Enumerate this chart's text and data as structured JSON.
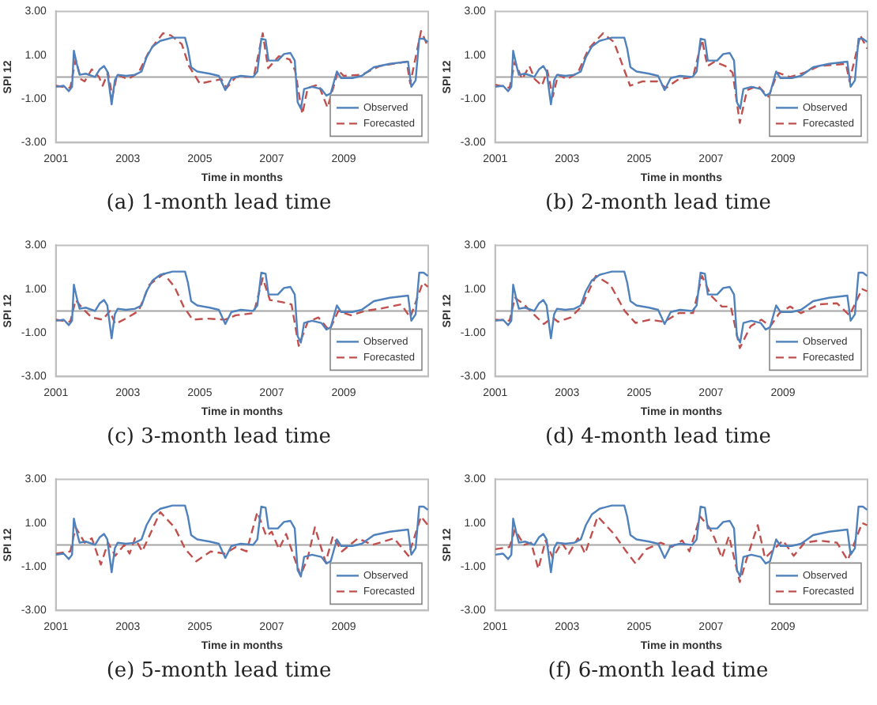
{
  "chart_data": [
    {
      "type": "line",
      "title": "(a) 1-month lead time",
      "xlabel": "Time in months",
      "ylabel": "SPI 12",
      "xlim": [
        2001,
        2011.35
      ],
      "xticks": [
        2001,
        2003,
        2005,
        2007,
        2009
      ],
      "ylim": [
        -3,
        3
      ],
      "yticks": [
        {
          "value": -3,
          "label": "-3.00"
        },
        {
          "value": -1,
          "label": "-1.00"
        },
        {
          "value": 1,
          "label": "1.00"
        },
        {
          "value": 3,
          "label": "3.00"
        }
      ],
      "grid": false,
      "legend": "bottom right",
      "marker": "none",
      "ref_lines": [
        {
          "axis": "y",
          "value": 0,
          "color": "#a6a6a6"
        }
      ],
      "series": [
        {
          "name": "Observed",
          "color": "#4f81bd",
          "line_style": "solid",
          "x": [
            2001.0,
            2001.22,
            2001.36,
            2001.45,
            2001.5,
            2001.6,
            2001.66,
            2001.83,
            2002.09,
            2002.22,
            2002.34,
            2002.43,
            2002.55,
            2002.64,
            2002.72,
            2002.95,
            2003.2,
            2003.38,
            2003.52,
            2003.69,
            2003.9,
            2004.24,
            2004.45,
            2004.59,
            2004.67,
            2004.76,
            2004.93,
            2005.28,
            2005.53,
            2005.71,
            2005.88,
            2006.14,
            2006.48,
            2006.6,
            2006.71,
            2006.83,
            2006.91,
            2007.17,
            2007.34,
            2007.52,
            2007.64,
            2007.72,
            2007.81,
            2007.9,
            2008.12,
            2008.38,
            2008.52,
            2008.64,
            2008.81,
            2008.93,
            2009.24,
            2009.5,
            2009.84,
            2010.28,
            2010.79,
            2010.88,
            2011.0,
            2011.1,
            2011.22,
            2011.34
          ],
          "values": [
            -0.45,
            -0.4,
            -0.65,
            -0.45,
            1.2,
            0.47,
            0.1,
            0.15,
            0.0,
            0.35,
            0.5,
            0.25,
            -1.25,
            -0.15,
            0.1,
            0.05,
            0.1,
            0.25,
            0.9,
            1.4,
            1.65,
            1.8,
            1.8,
            1.8,
            1.3,
            0.45,
            0.25,
            0.15,
            0.05,
            -0.6,
            -0.05,
            0.05,
            0,
            0.25,
            1.75,
            1.7,
            0.75,
            0.75,
            1.05,
            1.1,
            0.75,
            -1.15,
            -1.45,
            -0.55,
            -0.45,
            -0.55,
            -0.85,
            -0.75,
            0.25,
            -0.05,
            -0.05,
            0.05,
            0.45,
            0.6,
            0.7,
            -0.45,
            -0.15,
            1.75,
            1.75,
            1.6
          ]
        },
        {
          "name": "Forecasted",
          "color": "#c0504d",
          "line_style": "dashed",
          "x": [
            2001.0,
            2001.4,
            2001.55,
            2001.7,
            2001.8,
            2002.0,
            2002.2,
            2002.3,
            2002.45,
            2002.57,
            2002.7,
            2003.0,
            2003.3,
            2003.6,
            2003.98,
            2004.2,
            2004.5,
            2004.7,
            2005.0,
            2005.3,
            2005.6,
            2005.75,
            2006.0,
            2006.5,
            2006.75,
            2006.9,
            2007.2,
            2007.5,
            2007.65,
            2007.85,
            2008.0,
            2008.3,
            2008.55,
            2008.85,
            2009.0,
            2009.5,
            2010.0,
            2010.75,
            2010.85,
            2011.15,
            2011.34
          ],
          "values": [
            -0.4,
            -0.5,
            0.8,
            -0.1,
            -0.2,
            0.35,
            0.0,
            -0.4,
            0.2,
            -0.9,
            0.1,
            -0.1,
            0.2,
            1.2,
            2.0,
            1.9,
            1.5,
            0.5,
            -0.3,
            -0.2,
            -0.1,
            -0.5,
            0.0,
            0.0,
            2.0,
            0.4,
            0.95,
            0.8,
            0.3,
            -1.7,
            -0.5,
            -0.35,
            -1.4,
            0.3,
            0.05,
            0.1,
            0.5,
            0.7,
            -0.3,
            2.1,
            1.4
          ]
        }
      ]
    },
    {
      "type": "line",
      "title": "(b) 2-month lead time",
      "xlabel": "Time in months",
      "ylabel": "SPI 12",
      "xlim": [
        2001,
        2011.35
      ],
      "xticks": [
        2001,
        2003,
        2005,
        2007,
        2009
      ],
      "ylim": [
        -3,
        3
      ],
      "yticks": [
        {
          "value": -3,
          "label": "-3.00"
        },
        {
          "value": -1,
          "label": "-1.00"
        },
        {
          "value": 1,
          "label": "1.00"
        },
        {
          "value": 3,
          "label": "3.00"
        }
      ],
      "grid": false,
      "legend": "bottom right",
      "marker": "none",
      "ref_lines": [
        {
          "axis": "y",
          "value": 0,
          "color": "#a6a6a6"
        }
      ],
      "series": [
        {
          "name": "Observed",
          "color": "#4f81bd",
          "line_style": "solid",
          "x": [
            2001.0,
            2001.22,
            2001.36,
            2001.45,
            2001.5,
            2001.6,
            2001.66,
            2001.83,
            2002.09,
            2002.22,
            2002.34,
            2002.43,
            2002.55,
            2002.64,
            2002.72,
            2002.95,
            2003.2,
            2003.38,
            2003.52,
            2003.69,
            2003.9,
            2004.24,
            2004.45,
            2004.59,
            2004.67,
            2004.76,
            2004.93,
            2005.28,
            2005.53,
            2005.71,
            2005.88,
            2006.14,
            2006.48,
            2006.6,
            2006.71,
            2006.83,
            2006.91,
            2007.17,
            2007.34,
            2007.52,
            2007.64,
            2007.72,
            2007.81,
            2007.9,
            2008.12,
            2008.38,
            2008.52,
            2008.64,
            2008.81,
            2008.93,
            2009.24,
            2009.5,
            2009.84,
            2010.28,
            2010.79,
            2010.88,
            2011.0,
            2011.1,
            2011.22,
            2011.34
          ],
          "values": [
            -0.45,
            -0.4,
            -0.65,
            -0.45,
            1.2,
            0.47,
            0.1,
            0.15,
            0.0,
            0.35,
            0.5,
            0.25,
            -1.25,
            -0.15,
            0.1,
            0.05,
            0.1,
            0.25,
            0.9,
            1.4,
            1.65,
            1.8,
            1.8,
            1.8,
            1.3,
            0.45,
            0.25,
            0.15,
            0.05,
            -0.6,
            -0.05,
            0.05,
            0,
            0.25,
            1.75,
            1.7,
            0.75,
            0.75,
            1.05,
            1.1,
            0.75,
            -1.15,
            -1.45,
            -0.55,
            -0.45,
            -0.55,
            -0.85,
            -0.75,
            0.25,
            -0.05,
            -0.05,
            0.05,
            0.45,
            0.6,
            0.7,
            -0.45,
            -0.15,
            1.75,
            1.75,
            1.6
          ]
        },
        {
          "name": "Forecasted",
          "color": "#c0504d",
          "line_style": "dashed",
          "x": [
            2001.0,
            2001.4,
            2001.55,
            2001.75,
            2001.95,
            2002.1,
            2002.3,
            2002.45,
            2002.6,
            2002.75,
            2003.0,
            2003.3,
            2003.6,
            2004.0,
            2004.3,
            2004.55,
            2004.75,
            2005.1,
            2005.5,
            2005.75,
            2006.1,
            2006.5,
            2006.75,
            2006.9,
            2007.1,
            2007.4,
            2007.6,
            2007.8,
            2008.0,
            2008.3,
            2008.6,
            2008.85,
            2009.2,
            2009.6,
            2010.0,
            2010.75,
            2010.85,
            2011.15,
            2011.34
          ],
          "values": [
            -0.35,
            -0.5,
            0.7,
            -0.1,
            0.5,
            -0.1,
            -0.4,
            0.3,
            -0.9,
            0.1,
            -0.1,
            0.2,
            1.3,
            2.0,
            1.6,
            0.5,
            -0.4,
            -0.2,
            -0.2,
            -0.5,
            -0.1,
            0.0,
            1.7,
            0.5,
            0.7,
            0.5,
            0.2,
            -2.1,
            -0.6,
            -0.4,
            -0.9,
            0.2,
            0.0,
            0.2,
            0.5,
            0.6,
            -0.2,
            1.9,
            1.3
          ]
        }
      ]
    },
    {
      "type": "line",
      "title": "(c) 3-month lead time",
      "xlabel": "Time in months",
      "ylabel": "SPI 12",
      "xlim": [
        2001,
        2011.35
      ],
      "xticks": [
        2001,
        2003,
        2005,
        2007,
        2009
      ],
      "ylim": [
        -3,
        3
      ],
      "yticks": [
        {
          "value": -3,
          "label": "-3.00"
        },
        {
          "value": -1,
          "label": "-1.00"
        },
        {
          "value": 1,
          "label": "1.00"
        },
        {
          "value": 3,
          "label": "3.00"
        }
      ],
      "grid": false,
      "legend": "bottom right",
      "marker": "none",
      "ref_lines": [
        {
          "axis": "y",
          "value": 0,
          "color": "#a6a6a6"
        }
      ],
      "series": [
        {
          "name": "Observed",
          "color": "#4f81bd",
          "line_style": "solid",
          "x": [
            2001.0,
            2001.22,
            2001.36,
            2001.45,
            2001.5,
            2001.6,
            2001.66,
            2001.83,
            2002.09,
            2002.22,
            2002.34,
            2002.43,
            2002.55,
            2002.64,
            2002.72,
            2002.95,
            2003.2,
            2003.38,
            2003.52,
            2003.69,
            2003.9,
            2004.24,
            2004.45,
            2004.59,
            2004.67,
            2004.76,
            2004.93,
            2005.28,
            2005.53,
            2005.71,
            2005.88,
            2006.14,
            2006.48,
            2006.6,
            2006.71,
            2006.83,
            2006.91,
            2007.17,
            2007.34,
            2007.52,
            2007.64,
            2007.72,
            2007.81,
            2007.9,
            2008.12,
            2008.38,
            2008.52,
            2008.64,
            2008.81,
            2008.93,
            2009.24,
            2009.5,
            2009.84,
            2010.28,
            2010.79,
            2010.88,
            2011.0,
            2011.1,
            2011.22,
            2011.34
          ],
          "values": [
            -0.45,
            -0.4,
            -0.65,
            -0.45,
            1.2,
            0.47,
            0.1,
            0.15,
            0.0,
            0.35,
            0.5,
            0.25,
            -1.25,
            -0.15,
            0.1,
            0.05,
            0.1,
            0.25,
            0.9,
            1.4,
            1.65,
            1.8,
            1.8,
            1.8,
            1.3,
            0.45,
            0.25,
            0.15,
            0.05,
            -0.6,
            -0.05,
            0.05,
            0,
            0.25,
            1.75,
            1.7,
            0.75,
            0.75,
            1.05,
            1.1,
            0.75,
            -1.15,
            -1.45,
            -0.55,
            -0.45,
            -0.55,
            -0.85,
            -0.75,
            0.25,
            -0.05,
            -0.05,
            0.05,
            0.45,
            0.6,
            0.7,
            -0.45,
            -0.15,
            1.75,
            1.75,
            1.6
          ]
        },
        {
          "name": "Forecasted",
          "color": "#c0504d",
          "line_style": "dashed",
          "x": [
            2001.0,
            2001.4,
            2001.55,
            2001.75,
            2002.0,
            2002.3,
            2002.5,
            2002.65,
            2003.0,
            2003.3,
            2003.6,
            2004.0,
            2004.3,
            2004.55,
            2004.8,
            2005.2,
            2005.7,
            2006.0,
            2006.5,
            2006.75,
            2006.95,
            2007.3,
            2007.55,
            2007.75,
            2008.0,
            2008.3,
            2008.6,
            2008.85,
            2009.2,
            2009.6,
            2010.0,
            2010.6,
            2010.85,
            2011.2,
            2011.34
          ],
          "values": [
            -0.4,
            -0.5,
            0.5,
            0.1,
            -0.3,
            -0.4,
            0.0,
            -0.6,
            -0.3,
            0.0,
            1.2,
            1.7,
            1.1,
            0.2,
            -0.4,
            -0.35,
            -0.4,
            -0.2,
            -0.1,
            1.5,
            0.5,
            0.4,
            0.3,
            -1.6,
            -0.5,
            -0.3,
            -0.9,
            0.0,
            -0.2,
            0.0,
            0.1,
            0.3,
            -0.3,
            1.3,
            1.1
          ]
        }
      ]
    },
    {
      "type": "line",
      "title": "(d) 4-month lead time",
      "xlabel": "Time in months",
      "ylabel": "SPI 12",
      "xlim": [
        2001,
        2011.35
      ],
      "xticks": [
        2001,
        2003,
        2005,
        2007,
        2009
      ],
      "ylim": [
        -3,
        3
      ],
      "yticks": [
        {
          "value": -3,
          "label": "-3.00"
        },
        {
          "value": -1,
          "label": "-1.00"
        },
        {
          "value": 1,
          "label": "1.00"
        },
        {
          "value": 3,
          "label": "3.00"
        }
      ],
      "grid": false,
      "legend": "bottom right",
      "marker": "none",
      "ref_lines": [
        {
          "axis": "y",
          "value": 0,
          "color": "#a6a6a6"
        }
      ],
      "series": [
        {
          "name": "Observed",
          "color": "#4f81bd",
          "line_style": "solid",
          "x": [
            2001.0,
            2001.22,
            2001.36,
            2001.45,
            2001.5,
            2001.6,
            2001.66,
            2001.83,
            2002.09,
            2002.22,
            2002.34,
            2002.43,
            2002.55,
            2002.64,
            2002.72,
            2002.95,
            2003.2,
            2003.38,
            2003.52,
            2003.69,
            2003.9,
            2004.24,
            2004.45,
            2004.59,
            2004.67,
            2004.76,
            2004.93,
            2005.28,
            2005.53,
            2005.71,
            2005.88,
            2006.14,
            2006.48,
            2006.6,
            2006.71,
            2006.83,
            2006.91,
            2007.17,
            2007.34,
            2007.52,
            2007.64,
            2007.72,
            2007.81,
            2007.9,
            2008.12,
            2008.38,
            2008.52,
            2008.64,
            2008.81,
            2008.93,
            2009.24,
            2009.5,
            2009.84,
            2010.28,
            2010.79,
            2010.88,
            2011.0,
            2011.1,
            2011.22,
            2011.34
          ],
          "values": [
            -0.45,
            -0.4,
            -0.65,
            -0.45,
            1.2,
            0.47,
            0.1,
            0.15,
            0.0,
            0.35,
            0.5,
            0.25,
            -1.25,
            -0.15,
            0.1,
            0.05,
            0.1,
            0.25,
            0.9,
            1.4,
            1.65,
            1.8,
            1.8,
            1.8,
            1.3,
            0.45,
            0.25,
            0.15,
            0.05,
            -0.6,
            -0.05,
            0.05,
            0,
            0.25,
            1.75,
            1.7,
            0.75,
            0.75,
            1.05,
            1.1,
            0.75,
            -1.15,
            -1.45,
            -0.55,
            -0.45,
            -0.55,
            -0.85,
            -0.75,
            0.25,
            -0.05,
            -0.05,
            0.05,
            0.45,
            0.6,
            0.7,
            -0.45,
            -0.15,
            1.75,
            1.75,
            1.6
          ]
        },
        {
          "name": "Forecasted",
          "color": "#c0504d",
          "line_style": "dashed",
          "x": [
            2001.0,
            2001.4,
            2001.55,
            2001.8,
            2002.1,
            2002.35,
            2002.6,
            2002.75,
            2003.1,
            2003.4,
            2003.8,
            2004.2,
            2004.6,
            2004.9,
            2005.3,
            2005.7,
            2006.1,
            2006.5,
            2006.75,
            2007.0,
            2007.3,
            2007.55,
            2007.8,
            2008.1,
            2008.4,
            2008.65,
            2008.9,
            2009.2,
            2009.5,
            2010.0,
            2010.5,
            2010.85,
            2011.2,
            2011.34
          ],
          "values": [
            -0.4,
            -0.45,
            0.6,
            0.3,
            -0.2,
            -0.6,
            -0.3,
            -0.5,
            -0.3,
            0.2,
            1.6,
            1.2,
            0.0,
            -0.55,
            -0.4,
            -0.5,
            -0.1,
            -0.1,
            1.6,
            0.7,
            0.2,
            0.2,
            -1.7,
            -0.7,
            -0.4,
            -0.7,
            -0.1,
            0.2,
            -0.1,
            0.3,
            0.35,
            -0.2,
            1.0,
            0.9
          ]
        }
      ]
    },
    {
      "type": "line",
      "title": "(e) 5-month lead time",
      "xlabel": "Time in months",
      "ylabel": "SPI 12",
      "xlim": [
        2001,
        2011.35
      ],
      "xticks": [
        2001,
        2003,
        2005,
        2007,
        2009
      ],
      "ylim": [
        -3,
        3
      ],
      "yticks": [
        {
          "value": -3,
          "label": "-3.00"
        },
        {
          "value": -1,
          "label": "-1.00"
        },
        {
          "value": 1,
          "label": "1.00"
        },
        {
          "value": 3,
          "label": "3.00"
        }
      ],
      "grid": false,
      "legend": "bottom right",
      "marker": "none",
      "ref_lines": [
        {
          "axis": "y",
          "value": 0,
          "color": "#a6a6a6"
        }
      ],
      "series": [
        {
          "name": "Observed",
          "color": "#4f81bd",
          "line_style": "solid",
          "x": [
            2001.0,
            2001.22,
            2001.36,
            2001.45,
            2001.5,
            2001.6,
            2001.66,
            2001.83,
            2002.09,
            2002.22,
            2002.34,
            2002.43,
            2002.55,
            2002.64,
            2002.72,
            2002.95,
            2003.2,
            2003.38,
            2003.52,
            2003.69,
            2003.9,
            2004.24,
            2004.45,
            2004.59,
            2004.67,
            2004.76,
            2004.93,
            2005.28,
            2005.53,
            2005.71,
            2005.88,
            2006.14,
            2006.48,
            2006.6,
            2006.71,
            2006.83,
            2006.91,
            2007.17,
            2007.34,
            2007.52,
            2007.64,
            2007.72,
            2007.81,
            2007.9,
            2008.12,
            2008.38,
            2008.52,
            2008.64,
            2008.81,
            2008.93,
            2009.24,
            2009.5,
            2009.84,
            2010.28,
            2010.79,
            2010.88,
            2011.0,
            2011.1,
            2011.22,
            2011.34
          ],
          "values": [
            -0.45,
            -0.4,
            -0.65,
            -0.45,
            1.2,
            0.47,
            0.1,
            0.15,
            0.0,
            0.35,
            0.5,
            0.25,
            -1.25,
            -0.15,
            0.1,
            0.05,
            0.1,
            0.25,
            0.9,
            1.4,
            1.65,
            1.8,
            1.8,
            1.8,
            1.3,
            0.45,
            0.25,
            0.15,
            0.05,
            -0.6,
            -0.05,
            0.05,
            0,
            0.25,
            1.75,
            1.7,
            0.75,
            0.75,
            1.05,
            1.1,
            0.75,
            -1.15,
            -1.45,
            -0.55,
            -0.45,
            -0.55,
            -0.85,
            -0.75,
            0.25,
            -0.05,
            -0.05,
            0.05,
            0.45,
            0.6,
            0.7,
            -0.45,
            -0.15,
            1.75,
            1.75,
            1.6
          ]
        },
        {
          "name": "Forecasted",
          "color": "#c0504d",
          "line_style": "dashed",
          "x": [
            2001.0,
            2001.4,
            2001.55,
            2001.8,
            2002.0,
            2002.25,
            2002.45,
            2002.65,
            2002.9,
            2003.05,
            2003.2,
            2003.4,
            2003.9,
            2004.3,
            2004.6,
            2004.9,
            2005.3,
            2005.7,
            2006.0,
            2006.3,
            2006.6,
            2006.85,
            2007.0,
            2007.2,
            2007.4,
            2007.8,
            2008.0,
            2008.2,
            2008.5,
            2008.7,
            2008.95,
            2009.4,
            2009.8,
            2010.4,
            2010.8,
            2011.15,
            2011.34
          ],
          "values": [
            -0.4,
            -0.3,
            0.8,
            0.1,
            0.3,
            -0.9,
            0.1,
            -0.5,
            0.0,
            -0.4,
            0.3,
            -0.3,
            1.5,
            0.8,
            -0.2,
            -0.75,
            -0.3,
            -0.4,
            -0.1,
            -0.3,
            1.5,
            0.4,
            0.6,
            -0.2,
            0.5,
            -1.4,
            -0.6,
            0.8,
            -0.8,
            0.4,
            -0.3,
            0.3,
            0.0,
            0.3,
            -0.5,
            1.3,
            0.9
          ]
        }
      ]
    },
    {
      "type": "line",
      "title": "(f) 6-month lead time",
      "xlabel": "Time in months",
      "ylabel": "SPI 12",
      "xlim": [
        2001,
        2011.35
      ],
      "xticks": [
        2001,
        2003,
        2005,
        2007,
        2009
      ],
      "ylim": [
        -3,
        3
      ],
      "yticks": [
        {
          "value": -3,
          "label": "-3.00"
        },
        {
          "value": -1,
          "label": "-1.00"
        },
        {
          "value": 1,
          "label": "1.00"
        },
        {
          "value": 3,
          "label": "3.00"
        }
      ],
      "grid": false,
      "legend": "bottom right",
      "marker": "none",
      "ref_lines": [
        {
          "axis": "y",
          "value": 0,
          "color": "#a6a6a6"
        }
      ],
      "series": [
        {
          "name": "Observed",
          "color": "#4f81bd",
          "line_style": "solid",
          "x": [
            2001.0,
            2001.22,
            2001.36,
            2001.45,
            2001.5,
            2001.6,
            2001.66,
            2001.83,
            2002.09,
            2002.22,
            2002.34,
            2002.43,
            2002.55,
            2002.64,
            2002.72,
            2002.95,
            2003.2,
            2003.38,
            2003.52,
            2003.69,
            2003.9,
            2004.24,
            2004.45,
            2004.59,
            2004.67,
            2004.76,
            2004.93,
            2005.28,
            2005.53,
            2005.71,
            2005.88,
            2006.14,
            2006.48,
            2006.6,
            2006.71,
            2006.83,
            2006.91,
            2007.17,
            2007.34,
            2007.52,
            2007.64,
            2007.72,
            2007.81,
            2007.9,
            2008.12,
            2008.38,
            2008.52,
            2008.64,
            2008.81,
            2008.93,
            2009.24,
            2009.5,
            2009.84,
            2010.28,
            2010.79,
            2010.88,
            2011.0,
            2011.1,
            2011.22,
            2011.34
          ],
          "values": [
            -0.45,
            -0.4,
            -0.65,
            -0.45,
            1.2,
            0.47,
            0.1,
            0.15,
            0.0,
            0.35,
            0.5,
            0.25,
            -1.25,
            -0.15,
            0.1,
            0.05,
            0.1,
            0.25,
            0.9,
            1.4,
            1.65,
            1.8,
            1.8,
            1.8,
            1.3,
            0.45,
            0.25,
            0.15,
            0.05,
            -0.6,
            -0.05,
            0.05,
            0,
            0.25,
            1.75,
            1.7,
            0.75,
            0.75,
            1.05,
            1.1,
            0.75,
            -1.15,
            -1.45,
            -0.55,
            -0.45,
            -0.55,
            -0.85,
            -0.75,
            0.25,
            -0.05,
            -0.05,
            0.05,
            0.45,
            0.6,
            0.7,
            -0.45,
            -0.15,
            1.75,
            1.75,
            1.6
          ]
        },
        {
          "name": "Forecasted",
          "color": "#c0504d",
          "line_style": "dashed",
          "x": [
            2001.0,
            2001.4,
            2001.55,
            2001.8,
            2002.0,
            2002.2,
            2002.4,
            2002.6,
            2002.85,
            2003.05,
            2003.3,
            2003.5,
            2003.85,
            2004.3,
            2004.6,
            2004.9,
            2005.2,
            2005.6,
            2005.9,
            2006.2,
            2006.4,
            2006.7,
            2006.95,
            2007.1,
            2007.3,
            2007.5,
            2007.8,
            2008.0,
            2008.3,
            2008.5,
            2008.75,
            2009.0,
            2009.3,
            2009.6,
            2010.0,
            2010.5,
            2010.8,
            2011.2,
            2011.34
          ],
          "values": [
            -0.2,
            -0.1,
            0.7,
            0.0,
            0.1,
            -1.1,
            0.2,
            -0.6,
            0.1,
            -0.4,
            0.3,
            -0.4,
            1.3,
            0.5,
            -0.2,
            -0.85,
            -0.2,
            0.1,
            -0.1,
            0.2,
            -0.3,
            1.3,
            0.8,
            0.3,
            -0.6,
            0.4,
            -1.7,
            -0.6,
            0.9,
            -0.6,
            -0.2,
            0.2,
            -0.5,
            0.1,
            0.2,
            0.1,
            -0.7,
            1.0,
            0.9
          ]
        }
      ]
    }
  ]
}
